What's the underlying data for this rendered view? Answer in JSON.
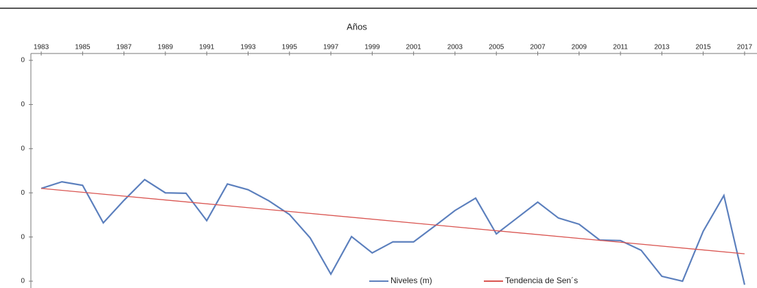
{
  "chart_data": {
    "type": "line",
    "x_label": "Años",
    "xlim": [
      1982.5,
      2017.6
    ],
    "xticks": [
      1983,
      1985,
      1987,
      1989,
      1991,
      1993,
      1995,
      1997,
      1999,
      2001,
      2003,
      2005,
      2007,
      2009,
      2011,
      2013,
      2015,
      2017
    ],
    "ylim": [
      -0.15,
      5
    ],
    "yticks": [
      {
        "value": 0,
        "label": "0"
      },
      {
        "value": 1,
        "label": "0"
      },
      {
        "value": 2,
        "label": "0"
      },
      {
        "value": 3,
        "label": "0"
      },
      {
        "value": 4,
        "label": "0"
      },
      {
        "value": 5,
        "label": "0"
      }
    ],
    "legend": "bottom",
    "series": [
      {
        "name": "Niveles (m)",
        "color": "#5b7fbd",
        "x": [
          1983,
          1984,
          1985,
          1986,
          1987,
          1988,
          1989,
          1990,
          1991,
          1992,
          1993,
          1994,
          1995,
          1996,
          1997,
          1998,
          1999,
          2000,
          2001,
          2002,
          2003,
          2004,
          2005,
          2006,
          2007,
          2008,
          2009,
          2010,
          2011,
          2012,
          2013,
          2014,
          2015,
          2016,
          2017
        ],
        "values": [
          2.1,
          2.25,
          2.17,
          1.32,
          1.83,
          2.3,
          2.0,
          1.99,
          1.37,
          2.2,
          2.07,
          1.82,
          1.51,
          0.98,
          0.16,
          1.01,
          0.64,
          0.89,
          0.89,
          1.24,
          1.6,
          1.88,
          1.07,
          1.43,
          1.79,
          1.43,
          1.29,
          0.93,
          0.92,
          0.7,
          0.11,
          0.0,
          1.13,
          1.94,
          -0.08
        ]
      },
      {
        "name": "Tendencia de Sen´s",
        "color": "#d9534f",
        "x": [
          1983,
          2017
        ],
        "values": [
          2.1,
          0.62
        ]
      }
    ]
  }
}
